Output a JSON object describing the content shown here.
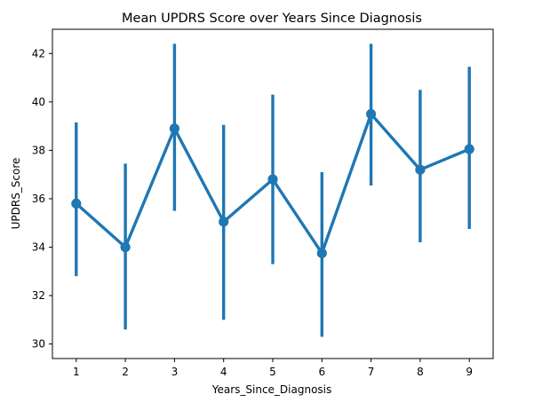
{
  "chart_data": {
    "type": "line",
    "title": "Mean UPDRS Score over Years Since Diagnosis",
    "xlabel": "Years_Since_Diagnosis",
    "ylabel": "UPDRS_Score",
    "categories": [
      "1",
      "2",
      "3",
      "4",
      "5",
      "6",
      "7",
      "8",
      "9"
    ],
    "series": [
      {
        "values": [
          35.8,
          34.0,
          38.9,
          35.05,
          36.8,
          33.75,
          39.5,
          37.2,
          38.05
        ],
        "ci_low": [
          32.8,
          30.6,
          35.5,
          31.0,
          33.3,
          30.3,
          36.55,
          34.2,
          34.75
        ],
        "ci_high": [
          39.15,
          37.45,
          42.4,
          39.05,
          40.3,
          37.1,
          42.4,
          40.5,
          41.45
        ],
        "color": "#1f77b4"
      }
    ],
    "ylim": [
      29.4,
      43.0
    ],
    "yticks": [
      30,
      32,
      34,
      36,
      38,
      40,
      42
    ],
    "grid": false,
    "legend": "none"
  }
}
